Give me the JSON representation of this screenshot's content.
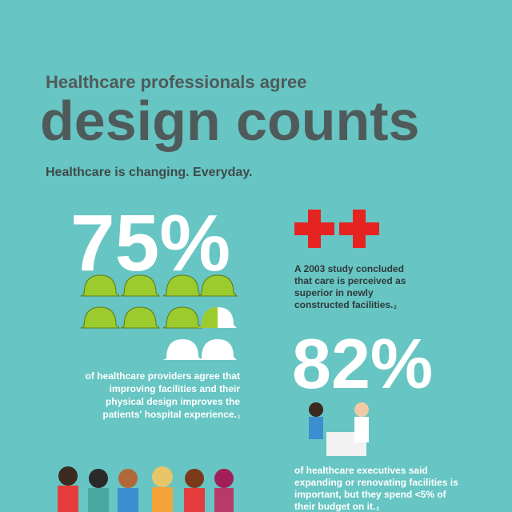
{
  "header": {
    "kicker": "Healthcare professionals agree",
    "title": "design counts",
    "subtitle": "Healthcare is changing. Everyday."
  },
  "stats": [
    {
      "value": "75%",
      "caption": [
        "of healthcare providers agree that",
        "improving facilities and their",
        "physical design  improves the",
        "patients' hospital experience."
      ],
      "footnote": "1"
    },
    {
      "value": "82%",
      "caption": [
        "of healthcare executives said",
        "expanding or renovating facilities is",
        "important, but they spend <5% of",
        "their budget on it."
      ],
      "footnote": "3"
    }
  ],
  "study": {
    "lines": [
      "A 2003 study concluded",
      "that care is perceived as",
      "superior in newly",
      "constructed facilities."
    ],
    "footnote": "2"
  }
}
